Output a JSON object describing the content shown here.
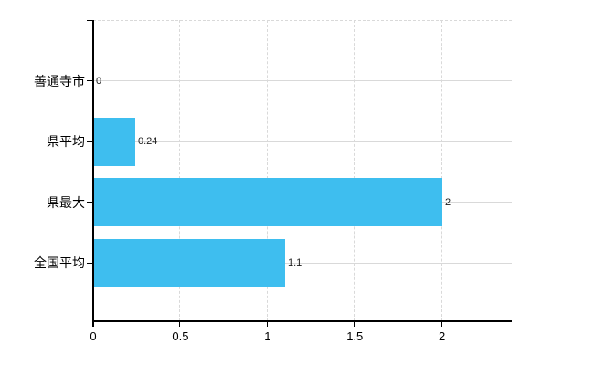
{
  "chart_data": {
    "type": "bar",
    "orientation": "horizontal",
    "title": "",
    "xlabel": "",
    "ylabel": "",
    "categories": [
      "善通寺市",
      "県平均",
      "県最大",
      "全国平均"
    ],
    "values": [
      0,
      0.24,
      2,
      1.1
    ],
    "value_labels": [
      "0",
      "0.24",
      "2",
      "1.1"
    ],
    "xlim": [
      0,
      2.4
    ],
    "x_ticks": [
      0,
      0.5,
      1,
      1.5,
      2
    ],
    "x_tick_labels": [
      "0",
      "0.5",
      "1",
      "1.5",
      "2"
    ],
    "grid": true,
    "legend": false,
    "colors": {
      "bar": "#3EBEEF",
      "grid": "#D9D9D9",
      "axis": "#000000",
      "text": "#000000",
      "value_label": "#1A1A1A"
    }
  }
}
